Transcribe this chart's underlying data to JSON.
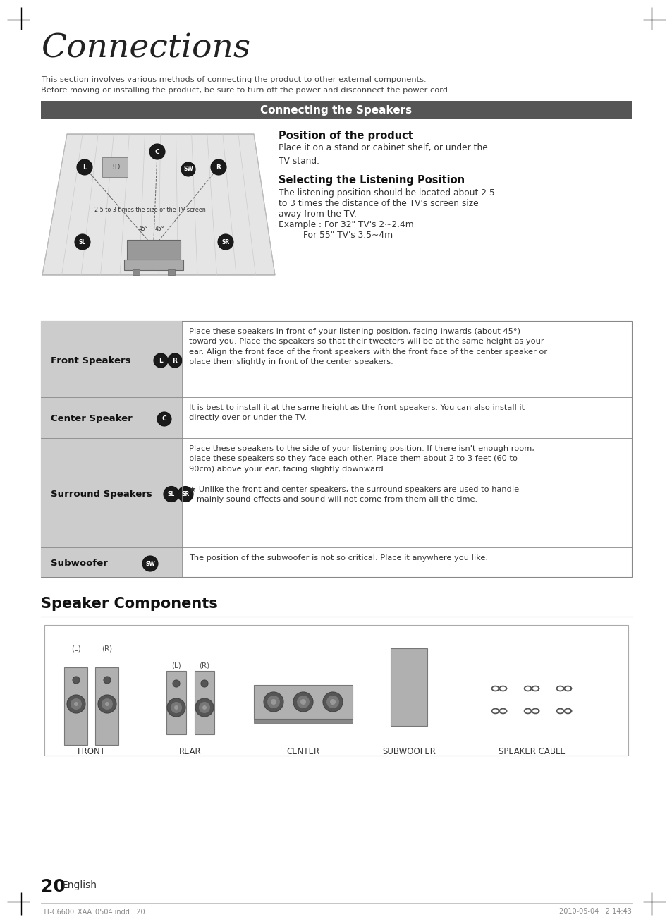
{
  "page_bg": "#ffffff",
  "title": "Connections",
  "subtitle1": "This section involves various methods of connecting the product to other external components.",
  "subtitle2": "Before moving or installing the product, be sure to turn off the power and disconnect the power cord.",
  "section_header": "Connecting the Speakers",
  "section_header_bg": "#555555",
  "section_header_color": "#ffffff",
  "pos_title": "Position of the product",
  "pos_text": "Place it on a stand or cabinet shelf, or under the\nTV stand.",
  "listening_title": "Selecting the Listening Position",
  "listening_text1": "The listening position should be located about 2.5",
  "listening_text2": "to 3 times the distance of the TV's screen size",
  "listening_text3": "away from the TV.",
  "listening_text4": "Example : For 32\" TV's 2~2.4m",
  "listening_text5": "         For 55\" TV's 3.5~4m",
  "table_rows": [
    {
      "label": "Front Speakers",
      "icons": [
        "L",
        "R"
      ],
      "text": "Place these speakers in front of your listening position, facing inwards (about 45°)\ntoward you. Place the speakers so that their tweeters will be at the same height as your\near. Align the front face of the front speakers with the front face of the center speaker or\nplace them slightly in front of the center speakers."
    },
    {
      "label": "Center Speaker",
      "icons": [
        "C"
      ],
      "text": "It is best to install it at the same height as the front speakers. You can also install it\ndirectly over or under the TV."
    },
    {
      "label": "Surround Speakers",
      "icons": [
        "SL",
        "SR"
      ],
      "text": "Place these speakers to the side of your listening position. If there isn't enough room,\nplace these speakers so they face each other. Place them about 2 to 3 feet (60 to\n90cm) above your ear, facing slightly downward.\n\n★ Unlike the front and center speakers, the surround speakers are used to handle\n   mainly sound effects and sound will not come from them all the time."
    },
    {
      "label": "Subwoofer",
      "icons": [
        "SW"
      ],
      "text": "The position of the subwoofer is not so critical. Place it anywhere you like."
    }
  ],
  "speaker_components_title": "Speaker Components",
  "page_number": "20",
  "footer_text": "English",
  "footer_left": "HT-C6600_XAA_0504.indd   20",
  "footer_right": "2010-05-04   2:14:43",
  "table_label_bg": "#cccccc",
  "table_border": "#888888",
  "diag_label_text": "2.5 to 3 times the size of the TV screen",
  "diag_angle1": "45°",
  "diag_angle2": "45°"
}
